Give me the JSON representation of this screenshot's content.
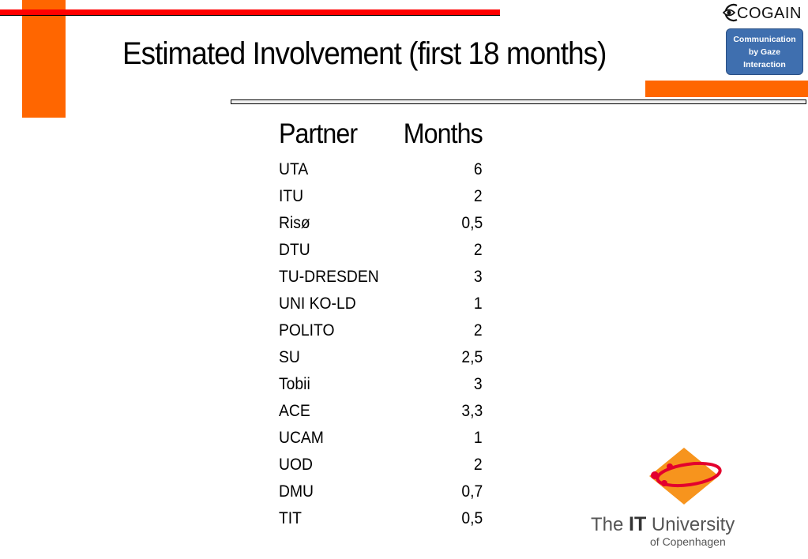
{
  "slide": {
    "title": "Estimated Involvement (first 18 months)"
  },
  "cogain_logo": {
    "word": "COGAIN",
    "line1": "Communication",
    "line2": "by Gaze",
    "line3": "Interaction",
    "box_color": "#3f6faf"
  },
  "table": {
    "headers": [
      "Partner",
      "Months"
    ],
    "rows": [
      {
        "partner": "UTA",
        "months": "6"
      },
      {
        "partner": "ITU",
        "months": "2"
      },
      {
        "partner": "Risø",
        "months": "0,5"
      },
      {
        "partner": "DTU",
        "months": "2"
      },
      {
        "partner": "TU-DRESDEN",
        "months": "3"
      },
      {
        "partner": "UNI KO-LD",
        "months": "1"
      },
      {
        "partner": "POLITO",
        "months": "2"
      },
      {
        "partner": "SU",
        "months": "2,5"
      },
      {
        "partner": "Tobii",
        "months": "3"
      },
      {
        "partner": "ACE",
        "months": "3,3"
      },
      {
        "partner": "UCAM",
        "months": "1"
      },
      {
        "partner": "UOD",
        "months": "2"
      },
      {
        "partner": "DMU",
        "months": "0,7"
      },
      {
        "partner": "TIT",
        "months": "0,5"
      }
    ]
  },
  "itu_logo": {
    "the": "The ",
    "it": "IT",
    "university": " University",
    "sub": "of Copenhagen"
  },
  "colors": {
    "accent_orange": "#ff6600",
    "accent_red": "#ff0000"
  }
}
